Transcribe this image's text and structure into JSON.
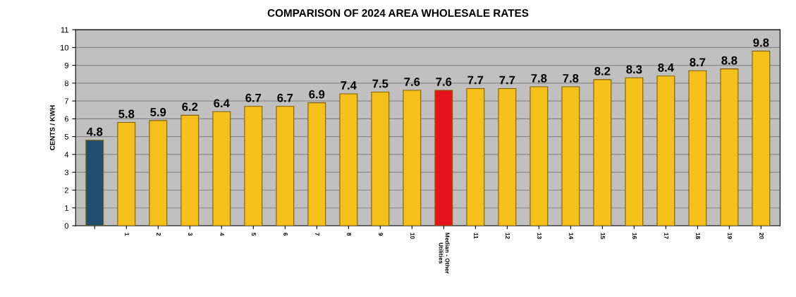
{
  "chart_data": {
    "type": "bar",
    "title": "COMPARISON OF 2024 AREA WHOLESALE RATES",
    "ylabel": "CENTS / KWH",
    "categories": [
      null,
      "1",
      "2",
      "3",
      "4",
      "5",
      "6",
      "7",
      "8",
      "9",
      "10",
      "Median - Other\nUtilities",
      "11",
      "12",
      "13",
      "14",
      "15",
      "16",
      "17",
      "18",
      "19",
      "20"
    ],
    "values": [
      4.8,
      5.8,
      5.9,
      6.2,
      6.4,
      6.7,
      6.7,
      6.9,
      7.4,
      7.5,
      7.6,
      7.6,
      7.7,
      7.7,
      7.8,
      7.8,
      8.2,
      8.3,
      8.4,
      8.7,
      8.8,
      9.8
    ],
    "colors": [
      "#1f4e6e",
      "#f5c01a",
      "#f5c01a",
      "#f5c01a",
      "#f5c01a",
      "#f5c01a",
      "#f5c01a",
      "#f5c01a",
      "#f5c01a",
      "#f5c01a",
      "#f5c01a",
      "#e8141b",
      "#f5c01a",
      "#f5c01a",
      "#f5c01a",
      "#f5c01a",
      "#f5c01a",
      "#f5c01a",
      "#f5c01a",
      "#f5c01a",
      "#f5c01a",
      "#f5c01a"
    ],
    "ylim": [
      0,
      11
    ],
    "yticks": [
      0,
      1,
      2,
      3,
      4,
      5,
      6,
      7,
      8,
      9,
      10,
      11
    ],
    "grid": "y",
    "data_labels": true
  }
}
